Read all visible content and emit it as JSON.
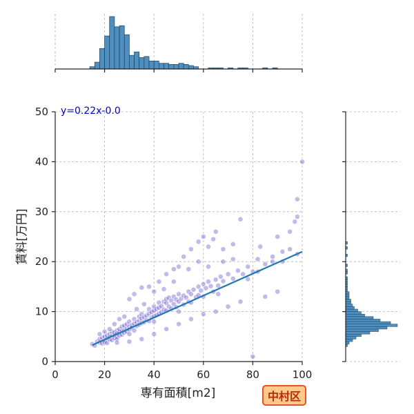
{
  "chart_data": {
    "type": "scatter",
    "xlabel": "専有面積[m2]",
    "ylabel": "賃料[万円]",
    "xlim": [
      0,
      100
    ],
    "ylim": [
      0,
      50
    ],
    "xticks": [
      "0",
      "20",
      "40",
      "60",
      "80",
      "100"
    ],
    "yticks": [
      "0",
      "10",
      "20",
      "30",
      "40",
      "50"
    ],
    "grid": true,
    "fit_line": {
      "slope": 0.22,
      "intercept": 0.0,
      "x_range": [
        15,
        100
      ],
      "label": "y=0.22x-0.0"
    },
    "colors": {
      "points": "#4a3bc4",
      "line": "#1f77b4",
      "hist": "#4f8fbf"
    },
    "points": [
      [
        15,
        3.5
      ],
      [
        16,
        3.2
      ],
      [
        17,
        4.0
      ],
      [
        18,
        3.8
      ],
      [
        18,
        4.5
      ],
      [
        19,
        3.6
      ],
      [
        19,
        4.8
      ],
      [
        20,
        4.2
      ],
      [
        20,
        5.0
      ],
      [
        20,
        3.9
      ],
      [
        21,
        4.6
      ],
      [
        21,
        5.2
      ],
      [
        21,
        3.7
      ],
      [
        22,
        4.4
      ],
      [
        22,
        5.5
      ],
      [
        22,
        4.9
      ],
      [
        23,
        5.1
      ],
      [
        23,
        4.3
      ],
      [
        23,
        6.0
      ],
      [
        24,
        5.3
      ],
      [
        24,
        4.7
      ],
      [
        24,
        5.8
      ],
      [
        25,
        5.0
      ],
      [
        25,
        6.2
      ],
      [
        25,
        5.6
      ],
      [
        25,
        4.5
      ],
      [
        26,
        5.9
      ],
      [
        26,
        6.5
      ],
      [
        26,
        5.2
      ],
      [
        27,
        6.1
      ],
      [
        27,
        5.4
      ],
      [
        27,
        7.0
      ],
      [
        28,
        6.3
      ],
      [
        28,
        5.8
      ],
      [
        28,
        7.2
      ],
      [
        29,
        6.6
      ],
      [
        29,
        7.5
      ],
      [
        29,
        6.0
      ],
      [
        30,
        7.0
      ],
      [
        30,
        6.4
      ],
      [
        30,
        8.0
      ],
      [
        30,
        5.5
      ],
      [
        31,
        7.3
      ],
      [
        31,
        6.8
      ],
      [
        32,
        7.6
      ],
      [
        32,
        8.5
      ],
      [
        32,
        6.2
      ],
      [
        33,
        7.9
      ],
      [
        33,
        7.1
      ],
      [
        34,
        8.2
      ],
      [
        34,
        9.0
      ],
      [
        34,
        7.4
      ],
      [
        35,
        8.6
      ],
      [
        35,
        7.7
      ],
      [
        35,
        9.5
      ],
      [
        36,
        8.9
      ],
      [
        36,
        7.9
      ],
      [
        37,
        9.2
      ],
      [
        37,
        8.3
      ],
      [
        38,
        9.6
      ],
      [
        38,
        10.5
      ],
      [
        38,
        8.1
      ],
      [
        39,
        9.9
      ],
      [
        39,
        8.8
      ],
      [
        40,
        10.2
      ],
      [
        40,
        9.1
      ],
      [
        40,
        11.0
      ],
      [
        40,
        8.0
      ],
      [
        41,
        10.5
      ],
      [
        41,
        9.3
      ],
      [
        42,
        10.8
      ],
      [
        42,
        9.6
      ],
      [
        42,
        11.8
      ],
      [
        43,
        11.1
      ],
      [
        43,
        9.9
      ],
      [
        44,
        10.4
      ],
      [
        44,
        12.0
      ],
      [
        45,
        11.7
      ],
      [
        45,
        10.2
      ],
      [
        45,
        12.5
      ],
      [
        46,
        11.0
      ],
      [
        46,
        12.8
      ],
      [
        47,
        12.2
      ],
      [
        47,
        10.6
      ],
      [
        48,
        11.5
      ],
      [
        48,
        13.0
      ],
      [
        49,
        12.4
      ],
      [
        49,
        10.9
      ],
      [
        50,
        12.0
      ],
      [
        50,
        13.5
      ],
      [
        50,
        10.0
      ],
      [
        51,
        12.6
      ],
      [
        52,
        13.2
      ],
      [
        52,
        11.4
      ],
      [
        53,
        12.8
      ],
      [
        54,
        14.0
      ],
      [
        54,
        12.0
      ],
      [
        55,
        13.5
      ],
      [
        55,
        11.8
      ],
      [
        56,
        14.4
      ],
      [
        57,
        12.9
      ],
      [
        58,
        15.0
      ],
      [
        58,
        13.3
      ],
      [
        59,
        14.2
      ],
      [
        60,
        15.5
      ],
      [
        60,
        13.0
      ],
      [
        61,
        14.7
      ],
      [
        62,
        16.0
      ],
      [
        63,
        15.1
      ],
      [
        64,
        14.0
      ],
      [
        65,
        16.4
      ],
      [
        66,
        15.2
      ],
      [
        67,
        17.0
      ],
      [
        68,
        16.1
      ],
      [
        70,
        17.5
      ],
      [
        72,
        16.6
      ],
      [
        74,
        18.2
      ],
      [
        76,
        17.5
      ],
      [
        78,
        19.0
      ],
      [
        80,
        18.0
      ],
      [
        82,
        20.5
      ],
      [
        85,
        19.5
      ],
      [
        88,
        21.0
      ],
      [
        92,
        20.0
      ],
      [
        95,
        22.5
      ],
      [
        98,
        21.5
      ],
      [
        30,
        12.5
      ],
      [
        32,
        13.5
      ],
      [
        35,
        14.8
      ],
      [
        38,
        15.0
      ],
      [
        40,
        14.0
      ],
      [
        42,
        16.0
      ],
      [
        45,
        17.5
      ],
      [
        48,
        18.5
      ],
      [
        50,
        19.0
      ],
      [
        52,
        21.0
      ],
      [
        55,
        22.5
      ],
      [
        58,
        24.0
      ],
      [
        60,
        25.0
      ],
      [
        62,
        23.0
      ],
      [
        64,
        24.5
      ],
      [
        65,
        26.0
      ],
      [
        68,
        22.5
      ],
      [
        72,
        23.5
      ],
      [
        75,
        28.5
      ],
      [
        83,
        23.0
      ],
      [
        90,
        25.0
      ],
      [
        95,
        26.0
      ],
      [
        97,
        28.0
      ],
      [
        98,
        29.0
      ],
      [
        98,
        32.5
      ],
      [
        100,
        40.0
      ],
      [
        80,
        1.0
      ],
      [
        85,
        13.0
      ],
      [
        90,
        14.0
      ],
      [
        75,
        12.0
      ],
      [
        65,
        10.0
      ],
      [
        60,
        9.5
      ],
      [
        55,
        8.5
      ],
      [
        50,
        7.5
      ],
      [
        45,
        6.5
      ],
      [
        40,
        5.5
      ],
      [
        35,
        4.5
      ],
      [
        30,
        4.0
      ],
      [
        25,
        3.8
      ],
      [
        70,
        11.0
      ],
      [
        68,
        20.0
      ],
      [
        72,
        20.5
      ],
      [
        62,
        19.0
      ],
      [
        58,
        20.0
      ],
      [
        54,
        18.5
      ],
      [
        48,
        16.0
      ],
      [
        44,
        14.5
      ],
      [
        36,
        11.5
      ],
      [
        33,
        10.5
      ],
      [
        28,
        9.0
      ],
      [
        26,
        8.5
      ],
      [
        24,
        7.5
      ],
      [
        22,
        6.5
      ],
      [
        20,
        6.0
      ],
      [
        18,
        5.5
      ],
      [
        78,
        16.5
      ],
      [
        82,
        18.0
      ],
      [
        88,
        20.0
      ],
      [
        92,
        22.0
      ],
      [
        66,
        13.5
      ]
    ],
    "top_hist": {
      "bin_start": 14,
      "bin_width": 2,
      "counts": [
        2,
        6,
        18,
        29,
        46,
        37,
        38,
        30,
        12,
        15,
        10,
        11,
        7,
        7,
        5,
        5,
        4,
        4,
        5,
        4,
        3,
        2,
        0,
        0,
        1,
        1,
        1,
        0,
        1,
        0,
        1,
        1,
        0,
        0,
        0,
        1,
        0,
        1
      ]
    },
    "right_hist": {
      "bin_start": 3,
      "bin_width": 0.5,
      "counts": [
        1,
        2,
        4,
        6,
        9,
        14,
        19,
        24,
        30,
        26,
        20,
        16,
        11,
        9,
        7,
        5,
        4,
        3,
        3,
        2,
        2,
        2,
        1,
        1,
        1,
        1,
        1,
        1,
        0,
        1,
        1,
        0,
        1,
        0,
        0,
        0,
        1,
        0,
        0,
        1,
        0,
        1
      ]
    }
  },
  "district_label": "中村区"
}
